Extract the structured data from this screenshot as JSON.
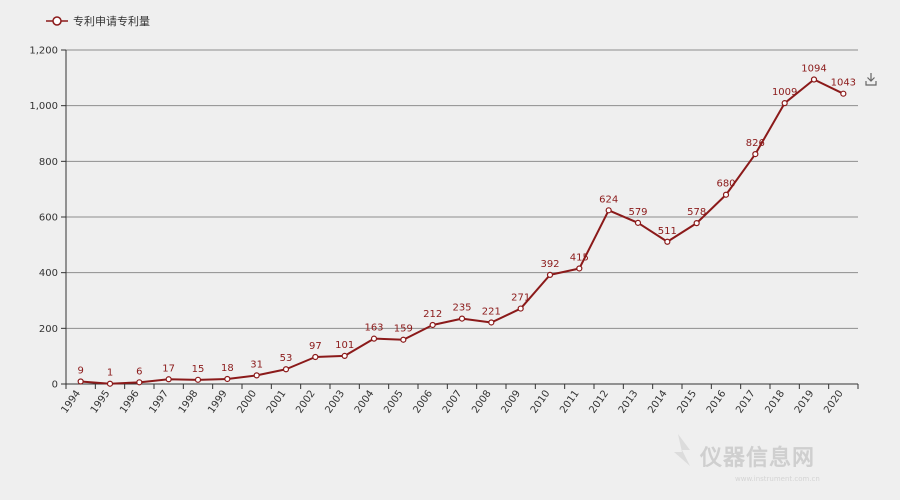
{
  "legend": {
    "label": "专利申请专利量"
  },
  "toolbar": {
    "download_icon": "download-icon"
  },
  "watermark": {
    "text": "仪器信息网",
    "subtext": "www.instrument.com.cn"
  },
  "colors": {
    "series": "#8b1a1a",
    "grid": "#8e8e8e",
    "background": "#efefef"
  },
  "chart_data": {
    "type": "line",
    "title": "",
    "xlabel": "",
    "ylabel": "",
    "ylim": [
      0,
      1200
    ],
    "yticks": [
      "0",
      "200",
      "400",
      "600",
      "800",
      "1,000",
      "1,200"
    ],
    "grid": true,
    "legend_position": "top-left",
    "categories": [
      "1994",
      "1995",
      "1996",
      "1997",
      "1998",
      "1999",
      "2000",
      "2001",
      "2002",
      "2003",
      "2004",
      "2005",
      "2006",
      "2007",
      "2008",
      "2009",
      "2010",
      "2011",
      "2012",
      "2013",
      "2014",
      "2015",
      "2016",
      "2017",
      "2018",
      "2019",
      "2020"
    ],
    "series": [
      {
        "name": "专利申请专利量",
        "values": [
          9,
          1,
          6,
          17,
          15,
          18,
          31,
          53,
          97,
          101,
          163,
          159,
          212,
          235,
          221,
          271,
          392,
          415,
          624,
          579,
          511,
          578,
          680,
          826,
          1009,
          1094,
          1043
        ],
        "labels": [
          "9",
          "1",
          "6",
          "17",
          "15",
          "18",
          "31",
          "53",
          "97",
          "101",
          "163",
          "159",
          "212",
          "235",
          "221",
          "271",
          "392",
          "415",
          "624",
          "579",
          "511",
          "578",
          "680",
          "826",
          "1009",
          "1094",
          "1043"
        ]
      }
    ]
  }
}
